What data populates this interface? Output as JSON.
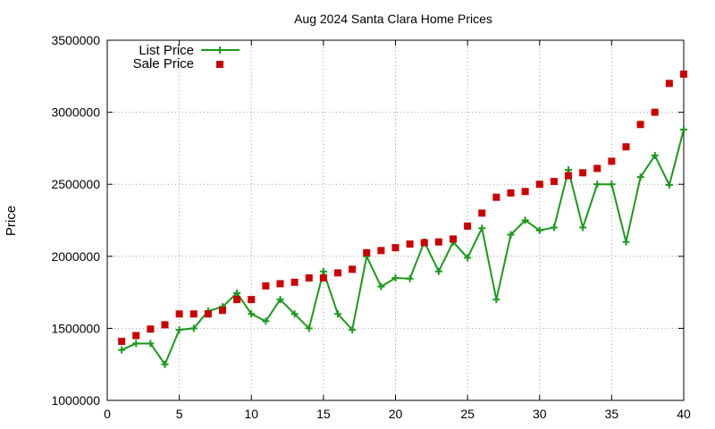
{
  "chart_data": {
    "type": "line",
    "title": "Aug 2024 Santa Clara Home Prices",
    "xlabel": "",
    "ylabel": "Price",
    "xlim": [
      0,
      40
    ],
    "ylim": [
      1000000,
      3500000
    ],
    "x_ticks": [
      "0",
      "5",
      "10",
      "15",
      "20",
      "25",
      "30",
      "35",
      "40"
    ],
    "y_ticks": [
      "1000000",
      "1500000",
      "2000000",
      "2500000",
      "3000000",
      "3500000"
    ],
    "grid": true,
    "legend_position": "top-left",
    "x": [
      1,
      2,
      3,
      4,
      5,
      6,
      7,
      8,
      9,
      10,
      11,
      12,
      13,
      14,
      15,
      16,
      17,
      18,
      19,
      20,
      21,
      22,
      23,
      24,
      25,
      26,
      27,
      28,
      29,
      30,
      31,
      32,
      33,
      34,
      35,
      36,
      37,
      38,
      39,
      40
    ],
    "series": [
      {
        "name": "List Price",
        "style": "linespoints",
        "color": "#1a9a1a",
        "values": [
          1350000,
          1395000,
          1395000,
          1250000,
          1490000,
          1500000,
          1620000,
          1650000,
          1745000,
          1600000,
          1550000,
          1700000,
          1600000,
          1500000,
          1895000,
          1600000,
          1490000,
          2000000,
          1790000,
          1850000,
          1845000,
          2100000,
          1895000,
          2100000,
          1990000,
          2195000,
          1700000,
          2150000,
          2250000,
          2180000,
          2200000,
          2600000,
          2200000,
          2500000,
          2500000,
          2100000,
          2550000,
          2700000,
          2495000,
          2880000
        ]
      },
      {
        "name": "Sale Price",
        "style": "points",
        "color": "#cc0000",
        "values": [
          1410000,
          1450000,
          1495000,
          1525000,
          1600000,
          1600000,
          1600000,
          1625000,
          1700000,
          1700000,
          1795000,
          1810000,
          1820000,
          1850000,
          1850000,
          1885000,
          1910000,
          2025000,
          2040000,
          2060000,
          2085000,
          2095000,
          2100000,
          2120000,
          2210000,
          2300000,
          2410000,
          2440000,
          2450000,
          2500000,
          2520000,
          2560000,
          2580000,
          2610000,
          2660000,
          2760000,
          2915000,
          3000000,
          3200000,
          3265000
        ]
      }
    ]
  }
}
